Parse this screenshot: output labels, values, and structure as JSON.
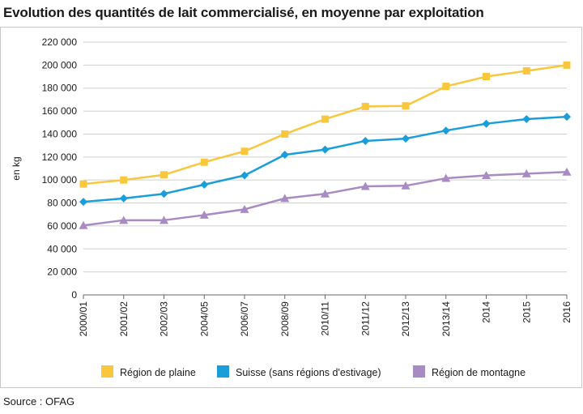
{
  "header": {
    "title": "Evolution des quantités de lait commercialisé, en moyenne par exploitation"
  },
  "footer": {
    "source": "Source : OFAG"
  },
  "chart_data": {
    "type": "line",
    "title": "Evolution des quantités de lait commercialisé, en moyenne par exploitation",
    "xlabel": "",
    "ylabel": "en kg",
    "ylim": [
      0,
      220000
    ],
    "yticks": [
      0,
      20000,
      40000,
      60000,
      80000,
      100000,
      120000,
      140000,
      160000,
      180000,
      200000,
      220000
    ],
    "ytick_labels": [
      "0",
      "20 000",
      "40 000",
      "60 000",
      "80 000",
      "100 000",
      "120 000",
      "140 000",
      "160 000",
      "180 000",
      "200 000",
      "220 000"
    ],
    "grid": true,
    "legend": "bottom",
    "categories": [
      "2000/01",
      "2001/02",
      "2002/03",
      "2004/05",
      "2006/07",
      "2008/09",
      "2010/11",
      "2011/12",
      "2012/13",
      "2013/14",
      "2014",
      "2015",
      "2016"
    ],
    "series": [
      {
        "name": "Région de plaine",
        "color": "#f9c73d",
        "marker": "square",
        "values": [
          96500,
          100000,
          104500,
          115500,
          125000,
          140000,
          153000,
          164000,
          164500,
          181500,
          190000,
          195000,
          200000
        ]
      },
      {
        "name": "Suisse (sans régions d'estivage)",
        "color": "#1a9ed9",
        "marker": "diamond",
        "values": [
          81000,
          84000,
          88000,
          96000,
          104000,
          122000,
          126500,
          134000,
          136000,
          143000,
          149000,
          153000,
          155000
        ]
      },
      {
        "name": "Région de montagne",
        "color": "#a98bc3",
        "marker": "triangle",
        "values": [
          60500,
          65000,
          65000,
          69500,
          74500,
          84000,
          88000,
          94500,
          95000,
          101500,
          104000,
          105500,
          107000
        ]
      }
    ]
  }
}
